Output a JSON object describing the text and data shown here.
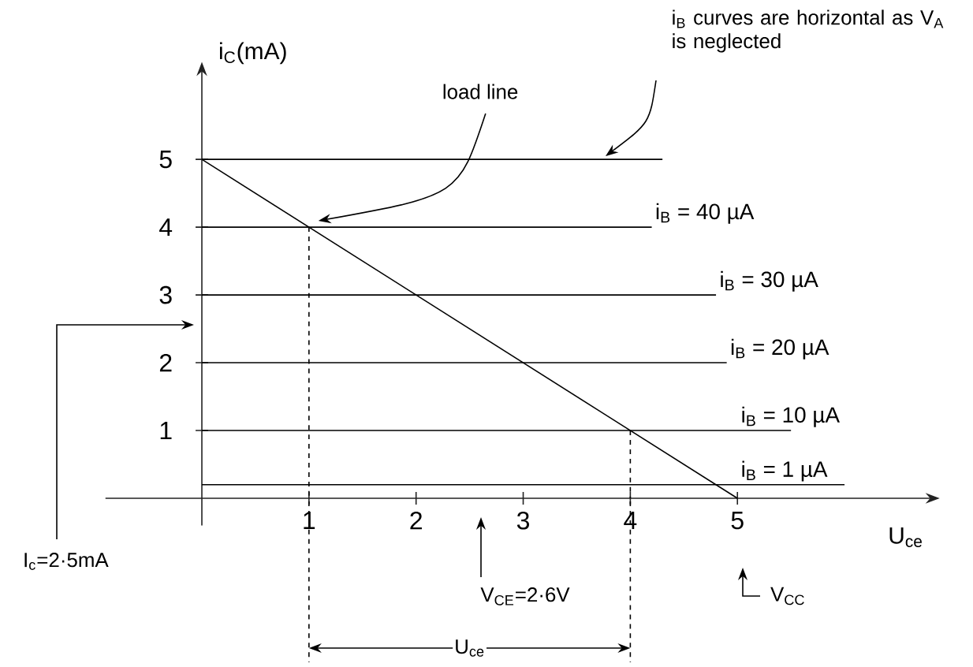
{
  "chart_data": {
    "type": "line",
    "xlabel": "U$_{ce}$",
    "ylabel": "i$_{C}$(mA)",
    "xlim": [
      -0.9,
      6.8
    ],
    "ylim": [
      -0.4,
      6.3
    ],
    "xticks": [
      1,
      2,
      3,
      4,
      5
    ],
    "yticks": [
      1,
      2,
      3,
      4,
      5
    ],
    "legend": false,
    "marker": "none",
    "series": [
      {
        "color": "#000000",
        "x": [
          0,
          4.3
        ],
        "values": [
          5,
          5
        ]
      },
      {
        "name": "i$_{B}$ = 40 µA",
        "color": "#000000",
        "x": [
          0,
          4.2
        ],
        "values": [
          4,
          4
        ]
      },
      {
        "name": "i$_{B}$ = 30 µA",
        "color": "#000000",
        "x": [
          0,
          4.8
        ],
        "values": [
          3,
          3
        ]
      },
      {
        "name": "i$_{B}$ = 20 µA",
        "color": "#000000",
        "x": [
          0,
          4.9
        ],
        "values": [
          2,
          2
        ]
      },
      {
        "name": "i$_{B}$ = 10 µA",
        "color": "#000000",
        "x": [
          0,
          5.5
        ],
        "values": [
          1,
          1
        ]
      },
      {
        "name": "i$_{B}$ = 1 µA",
        "color": "#000000",
        "x": [
          0,
          6.0
        ],
        "values": [
          0.2,
          0.2
        ]
      },
      {
        "color": "#000000",
        "x": [
          0,
          5
        ],
        "values": [
          5,
          0
        ]
      },
      {
        "color": "#000000",
        "line_style": "dashed",
        "x": [
          1,
          1
        ],
        "values": [
          4,
          0
        ]
      },
      {
        "color": "#000000",
        "line_style": "dashed",
        "x": [
          4,
          4
        ],
        "values": [
          1,
          0
        ]
      }
    ],
    "annotations": [
      "load line",
      "i$_{B}$ curves are horizontal as V$_{A}$ is neglected",
      "I$_{c}$=2·5mA",
      "V$_{CE}$=2·6V",
      "V$_{CC}$",
      "U$_{ce}$"
    ]
  }
}
